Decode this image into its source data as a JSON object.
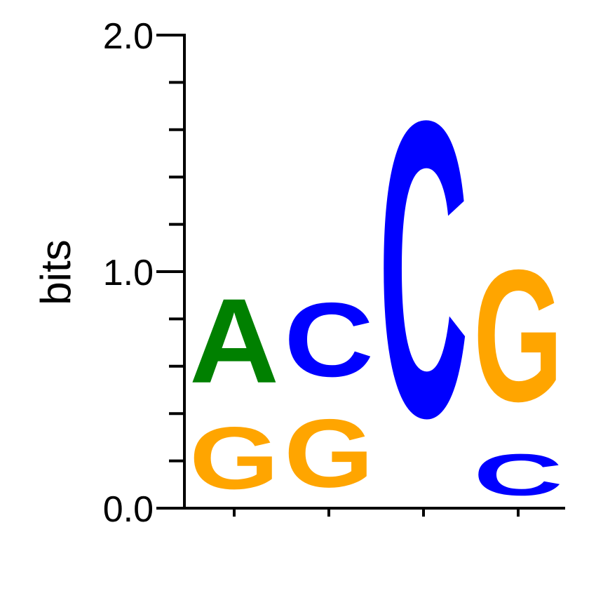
{
  "chart_data": {
    "type": "sequence-logo",
    "ylabel": "bits",
    "ylim": [
      0,
      2
    ],
    "yticks": [
      "0.0",
      "1.0",
      "2.0"
    ],
    "minor_ticks": [
      0.2,
      0.4,
      0.6,
      0.8,
      1.2,
      1.4,
      1.6,
      1.8
    ],
    "color_map": {
      "A": "#008000",
      "C": "#0000ff",
      "G": "#ffa500",
      "T": "#ff0000"
    },
    "positions": [
      {
        "position": 1,
        "stack": [
          {
            "letter": "G",
            "height": 0.42
          },
          {
            "letter": "A",
            "height": 0.57
          }
        ]
      },
      {
        "position": 2,
        "stack": [
          {
            "letter": "G",
            "height": 0.46
          },
          {
            "letter": "C",
            "height": 0.5
          }
        ]
      },
      {
        "position": 3,
        "stack": [
          {
            "letter": "C",
            "height": 2.0
          }
        ]
      },
      {
        "position": 4,
        "stack": [
          {
            "letter": "C",
            "height": 0.28
          },
          {
            "letter": "G",
            "height": 0.89
          }
        ]
      }
    ]
  }
}
